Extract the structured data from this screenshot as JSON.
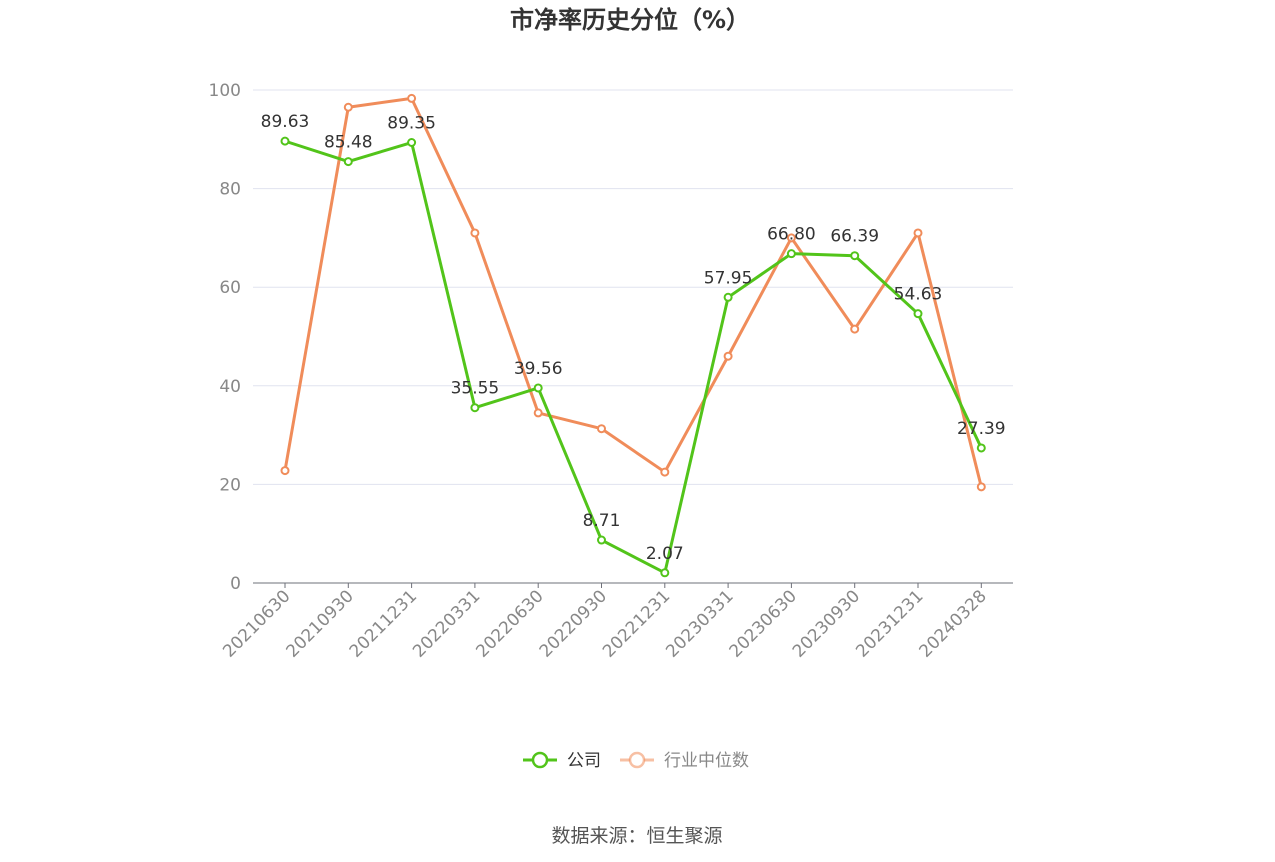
{
  "chart_data": {
    "type": "line",
    "title": "市净率历史分位（%）",
    "categories": [
      "20210630",
      "20210930",
      "20211231",
      "20220331",
      "20220630",
      "20220930",
      "20221231",
      "20230331",
      "20230630",
      "20230930",
      "20231231",
      "20240328"
    ],
    "ylim": [
      0,
      100
    ],
    "y_ticks": [
      "0",
      "20",
      "40",
      "60",
      "80",
      "100"
    ],
    "grid": true,
    "legend_position": "bottom-center",
    "series": [
      {
        "name": "公司",
        "color": "#52c41a",
        "values": [
          89.63,
          85.48,
          89.35,
          35.55,
          39.56,
          8.71,
          2.07,
          57.95,
          66.8,
          66.39,
          54.63,
          27.39
        ],
        "labels": [
          "89.63",
          "85.48",
          "89.35",
          "35.55",
          "39.56",
          "8.71",
          "2.07",
          "57.95",
          "66.80",
          "66.39",
          "54.63",
          "27.39"
        ]
      },
      {
        "name": "行业中位数",
        "color": "#f08c5a",
        "values": [
          22.8,
          96.5,
          98.3,
          71.0,
          34.5,
          31.3,
          22.5,
          46.0,
          70.0,
          51.5,
          71.0,
          19.5
        ]
      }
    ]
  },
  "source": "数据来源：恒生聚源"
}
